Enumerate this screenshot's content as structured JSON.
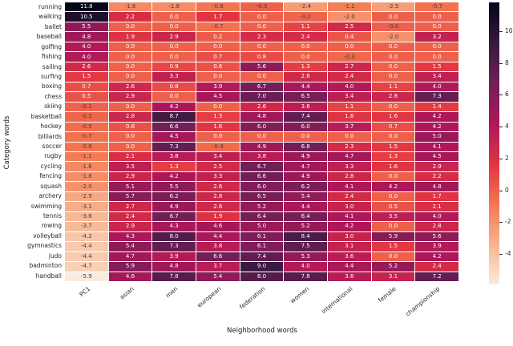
{
  "chart_data": {
    "type": "heatmap",
    "title": "",
    "xlabel": "Neighborhood words",
    "ylabel": "Category words",
    "x_categories": [
      "PC1",
      "asian",
      "men",
      "european",
      "federation",
      "women",
      "international",
      "female",
      "championship"
    ],
    "y_categories": [
      "running",
      "walking",
      "ballet",
      "baseball",
      "golfing",
      "fishing",
      "sailing",
      "surfing",
      "boxing",
      "chess",
      "skiing",
      "basketball",
      "hockey",
      "billiards",
      "soccer",
      "rugby",
      "cycling",
      "fencing",
      "squash",
      "archery",
      "swimming",
      "tennis",
      "rowing",
      "volleyball",
      "gymnastics",
      "judo",
      "badminton",
      "handball"
    ],
    "values": [
      [
        "11.8",
        "-1.6",
        "-1.8",
        "-0.8",
        "-0.0",
        "-2.4",
        "-1.2",
        "-2.5",
        "-0.7"
      ],
      [
        "10.5",
        "2.2",
        "0.0",
        "1.7",
        "0.0",
        "-0.2",
        "-2.0",
        "0.0",
        "0.0"
      ],
      [
        "5.5",
        "0.0",
        "0.0",
        "-0.7",
        "0.0",
        "1.1",
        "2.5",
        "-0.0",
        "0.0"
      ],
      [
        "4.8",
        "1.9",
        "2.9",
        "0.2",
        "2.3",
        "2.4",
        "0.4",
        "-2.0",
        "3.2"
      ],
      [
        "4.0",
        "0.0",
        "0.0",
        "0.0",
        "0.0",
        "0.0",
        "0.0",
        "0.0",
        "0.0"
      ],
      [
        "4.0",
        "0.0",
        "0.0",
        "0.7",
        "0.8",
        "0.0",
        "-0.3",
        "0.0",
        "0.0"
      ],
      [
        "2.6",
        "0.0",
        "0.9",
        "0.6",
        "5.6",
        "1.3",
        "2.7",
        "0.0",
        "1.5"
      ],
      [
        "1.5",
        "0.0",
        "3.3",
        "0.0",
        "0.0",
        "2.6",
        "2.4",
        "0.0",
        "3.4"
      ],
      [
        "0.7",
        "2.6",
        "0.8",
        "3.9",
        "6.7",
        "4.4",
        "4.0",
        "1.1",
        "4.0"
      ],
      [
        "0.5",
        "2.9",
        "0.0",
        "4.5",
        "7.0",
        "6.5",
        "3.4",
        "2.8",
        "7.3"
      ],
      [
        "-0.1",
        "0.0",
        "4.2",
        "0.0",
        "2.6",
        "3.6",
        "1.1",
        "0.0",
        "1.4"
      ],
      [
        "-0.2",
        "2.8",
        "8.7",
        "1.3",
        "4.8",
        "7.4",
        "1.8",
        "1.6",
        "4.2"
      ],
      [
        "-0.5",
        "0.6",
        "6.6",
        "1.6",
        "6.0",
        "6.0",
        "3.7",
        "0.7",
        "4.2"
      ],
      [
        "-0.7",
        "0.0",
        "4.5",
        "0.0",
        "0.0",
        "0.0",
        "0.0",
        "0.0",
        "5.0"
      ],
      [
        "-0.8",
        "0.0",
        "7.3",
        "-0.4",
        "4.9",
        "6.8",
        "2.3",
        "1.5",
        "4.1"
      ],
      [
        "-1.1",
        "2.1",
        "3.8",
        "3.4",
        "3.8",
        "4.9",
        "4.7",
        "1.3",
        "4.5"
      ],
      [
        "-1.6",
        "3.5",
        "1.3",
        "2.5",
        "6.7",
        "4.7",
        "3.3",
        "1.6",
        "2.9"
      ],
      [
        "-1.8",
        "2.9",
        "4.2",
        "3.3",
        "6.6",
        "4.9",
        "2.8",
        "0.0",
        "2.2"
      ],
      [
        "-2.0",
        "5.1",
        "5.5",
        "2.6",
        "6.0",
        "6.2",
        "4.1",
        "4.2",
        "4.8"
      ],
      [
        "-2.9",
        "5.7",
        "6.2",
        "2.8",
        "6.5",
        "5.4",
        "2.4",
        "0.0",
        "1.7"
      ],
      [
        "-3.1",
        "2.7",
        "4.9",
        "2.6",
        "5.2",
        "4.4",
        "3.0",
        "0.5",
        "2.1"
      ],
      [
        "-3.6",
        "2.4",
        "6.7",
        "1.9",
        "6.4",
        "6.4",
        "4.1",
        "3.5",
        "4.0"
      ],
      [
        "-3.7",
        "2.9",
        "4.3",
        "4.6",
        "5.0",
        "5.2",
        "4.2",
        "0.0",
        "2.8"
      ],
      [
        "-4.2",
        "4.3",
        "8.0",
        "4.4",
        "6.1",
        "8.4",
        "3.0",
        "5.9",
        "5.6"
      ],
      [
        "-4.4",
        "5.4",
        "7.3",
        "3.8",
        "6.1",
        "7.5",
        "3.1",
        "1.5",
        "3.9"
      ],
      [
        "-4.4",
        "4.7",
        "3.9",
        "6.6",
        "7.4",
        "5.3",
        "3.6",
        "0.0",
        "4.2"
      ],
      [
        "-4.7",
        "5.9",
        "4.8",
        "3.7",
        "9.0",
        "4.0",
        "4.4",
        "5.2",
        "2.4"
      ],
      [
        "-5.9",
        "4.6",
        "7.8",
        "5.4",
        "8.0",
        "7.8",
        "3.8",
        "3.1",
        "7.2"
      ]
    ],
    "colorbar": {
      "ticks": [
        "10",
        "8",
        "6",
        "4",
        "2",
        "0",
        "-2",
        "-4"
      ],
      "vmin": -5.9,
      "vmax": 11.8
    },
    "colors": {
      "colormap_light_to_dark": [
        "#FAEBDD",
        "#F6B48F",
        "#F37651",
        "#E13342",
        "#AD1759",
        "#701F57",
        "#35193E",
        "#03051A"
      ],
      "annotation_positive_text": "#FFFFFF",
      "annotation_negative_text": "#404040",
      "gridline": "#FFFFFF",
      "tick_label": "#262626"
    },
    "legend_position": "right-colorbar",
    "grid": false
  }
}
